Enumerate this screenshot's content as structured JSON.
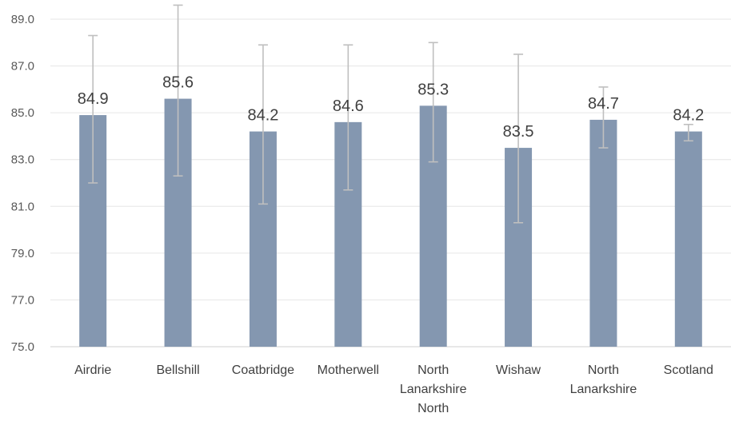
{
  "chart_data": {
    "type": "bar",
    "categories": [
      [
        "Airdrie"
      ],
      [
        "Bellshill"
      ],
      [
        "Coatbridge"
      ],
      [
        "Motherwell"
      ],
      [
        "North",
        "Lanarkshire",
        "North"
      ],
      [
        "Wishaw"
      ],
      [
        "North",
        "Lanarkshire"
      ],
      [
        "Scotland"
      ]
    ],
    "values": [
      84.9,
      85.6,
      84.2,
      84.6,
      85.3,
      83.5,
      84.7,
      84.2
    ],
    "value_labels": [
      "84.9",
      "85.6",
      "84.2",
      "84.6",
      "85.3",
      "83.5",
      "84.7",
      "84.2"
    ],
    "error_low": [
      82.0,
      82.3,
      81.1,
      81.7,
      82.9,
      80.3,
      83.5,
      83.8
    ],
    "error_high": [
      88.3,
      89.6,
      87.9,
      87.9,
      88.0,
      87.5,
      86.1,
      84.5
    ],
    "ylim": [
      75.0,
      89.0
    ],
    "yticks": [
      "75.0",
      "77.0",
      "79.0",
      "81.0",
      "83.0",
      "85.0",
      "87.0",
      "89.0"
    ],
    "ytick_values": [
      75,
      77,
      79,
      81,
      83,
      85,
      87,
      89
    ],
    "grid": true,
    "legend": "none",
    "title": "",
    "xlabel": "",
    "ylabel": "",
    "colors": {
      "bar": "#8497b0",
      "error_bar": "#bfbfbf",
      "grid": "#e6e6e6"
    }
  }
}
